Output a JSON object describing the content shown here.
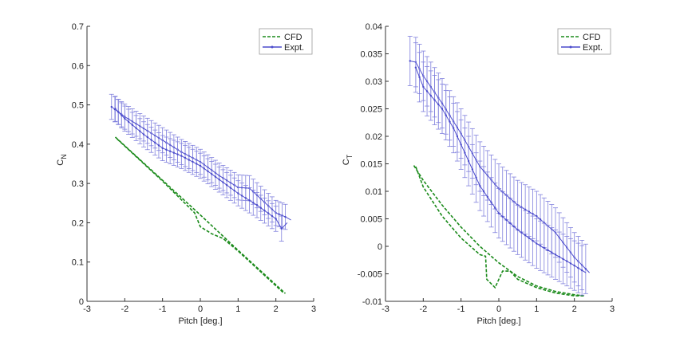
{
  "chart_data": [
    {
      "type": "line",
      "xlabel": "Pitch [deg.]",
      "ylabel": "C",
      "ylabel_sub": "N",
      "xlim": [
        -3,
        3
      ],
      "ylim": [
        0,
        0.7
      ],
      "xticks": [
        "-3",
        "-2",
        "-1",
        "0",
        "1",
        "2",
        "3"
      ],
      "yticks": [
        "0",
        "0.1",
        "0.2",
        "0.3",
        "0.4",
        "0.5",
        "0.6",
        "0.7"
      ],
      "legend_position": "top-right",
      "legend": [
        "CFD",
        "Expt."
      ],
      "series": [
        {
          "name": "CFD",
          "style": "dashed",
          "color": "#1a8a1a",
          "branches": [
            [
              [
                -2.25,
                0.418
              ],
              [
                -1,
                0.308
              ],
              [
                0,
                0.22
              ],
              [
                1,
                0.13
              ],
              [
                2.25,
                0.02
              ]
            ],
            [
              [
                -2.2,
                0.413
              ],
              [
                -1,
                0.306
              ],
              [
                -0.15,
                0.225
              ],
              [
                0,
                0.19
              ],
              [
                0.3,
                0.172
              ],
              [
                0.6,
                0.16
              ],
              [
                1,
                0.128
              ],
              [
                2.2,
                0.022
              ]
            ]
          ]
        },
        {
          "name": "Expt.",
          "style": "solid-markers",
          "color": "#4a4acc",
          "error": 0.032,
          "branches": [
            [
              [
                -2.35,
                0.495
              ],
              [
                -2,
                0.47
              ],
              [
                -1.5,
                0.44
              ],
              [
                -1,
                0.41
              ],
              [
                -0.5,
                0.38
              ],
              [
                0,
                0.355
              ],
              [
                0.5,
                0.32
              ],
              [
                1,
                0.29
              ],
              [
                1.3,
                0.288
              ],
              [
                1.5,
                0.27
              ],
              [
                2,
                0.225
              ],
              [
                2.25,
                0.215
              ],
              [
                2.4,
                0.207
              ]
            ],
            [
              [
                -2.25,
                0.49
              ],
              [
                -2,
                0.465
              ],
              [
                -1.5,
                0.425
              ],
              [
                -1,
                0.39
              ],
              [
                -0.5,
                0.37
              ],
              [
                0,
                0.345
              ],
              [
                0.5,
                0.31
              ],
              [
                1,
                0.275
              ],
              [
                1.5,
                0.245
              ],
              [
                2,
                0.21
              ],
              [
                2.15,
                0.185
              ],
              [
                2.3,
                0.2
              ]
            ]
          ]
        }
      ]
    },
    {
      "type": "line",
      "xlabel": "Pitch [deg.]",
      "ylabel": "C",
      "ylabel_sub": "T",
      "xlim": [
        -3,
        3
      ],
      "ylim": [
        -0.01,
        0.04
      ],
      "xticks": [
        "-3",
        "-2",
        "-1",
        "0",
        "1",
        "2",
        "3"
      ],
      "yticks": [
        "-0.01",
        "-0.005",
        "0",
        "0.005",
        "0.01",
        "0.015",
        "0.02",
        "0.025",
        "0.03",
        "0.035",
        "0.04"
      ],
      "legend_position": "top-right",
      "legend": [
        "CFD",
        "Expt."
      ],
      "series": [
        {
          "name": "CFD",
          "style": "dashed",
          "color": "#1a8a1a",
          "branches": [
            [
              [
                -2.25,
                0.0147
              ],
              [
                -2,
                0.012
              ],
              [
                -1.5,
                0.0075
              ],
              [
                -1,
                0.0035
              ],
              [
                -0.5,
                0.0
              ],
              [
                0,
                -0.003
              ],
              [
                0.5,
                -0.0055
              ],
              [
                1,
                -0.0072
              ],
              [
                1.5,
                -0.0082
              ],
              [
                2,
                -0.0088
              ],
              [
                2.25,
                -0.009
              ]
            ],
            [
              [
                -2.2,
                0.0145
              ],
              [
                -2,
                0.0108
              ],
              [
                -1.5,
                0.0055
              ],
              [
                -1,
                0.0015
              ],
              [
                -0.5,
                -0.0015
              ],
              [
                -0.35,
                -0.0018
              ],
              [
                -0.32,
                -0.006
              ],
              [
                -0.1,
                -0.0075
              ],
              [
                0.1,
                -0.0045
              ],
              [
                0.3,
                -0.0045
              ],
              [
                0.5,
                -0.006
              ],
              [
                1,
                -0.0075
              ],
              [
                1.5,
                -0.0085
              ],
              [
                2,
                -0.009
              ],
              [
                2.25,
                -0.009
              ]
            ]
          ]
        },
        {
          "name": "Expt.",
          "style": "solid-markers",
          "color": "#4a4acc",
          "error": 0.0045,
          "branches": [
            [
              [
                -2.35,
                0.0337
              ],
              [
                -2.2,
                0.0335
              ],
              [
                -2,
                0.031
              ],
              [
                -1.5,
                0.026
              ],
              [
                -1,
                0.0205
              ],
              [
                -0.5,
                0.0145
              ],
              [
                0,
                0.0105
              ],
              [
                0.5,
                0.0075
              ],
              [
                1,
                0.0055
              ],
              [
                1.5,
                0.0025
              ],
              [
                2,
                -0.002
              ],
              [
                2.4,
                -0.0048
              ]
            ],
            [
              [
                -2.2,
                0.0325
              ],
              [
                -2,
                0.029
              ],
              [
                -1.5,
                0.025
              ],
              [
                -1.2,
                0.0215
              ],
              [
                -1,
                0.0185
              ],
              [
                -0.5,
                0.011
              ],
              [
                0,
                0.006
              ],
              [
                0.5,
                0.003
              ],
              [
                1,
                0.0005
              ],
              [
                1.5,
                -0.0015
              ],
              [
                2,
                -0.0035
              ],
              [
                2.3,
                -0.0048
              ]
            ]
          ]
        }
      ]
    }
  ]
}
